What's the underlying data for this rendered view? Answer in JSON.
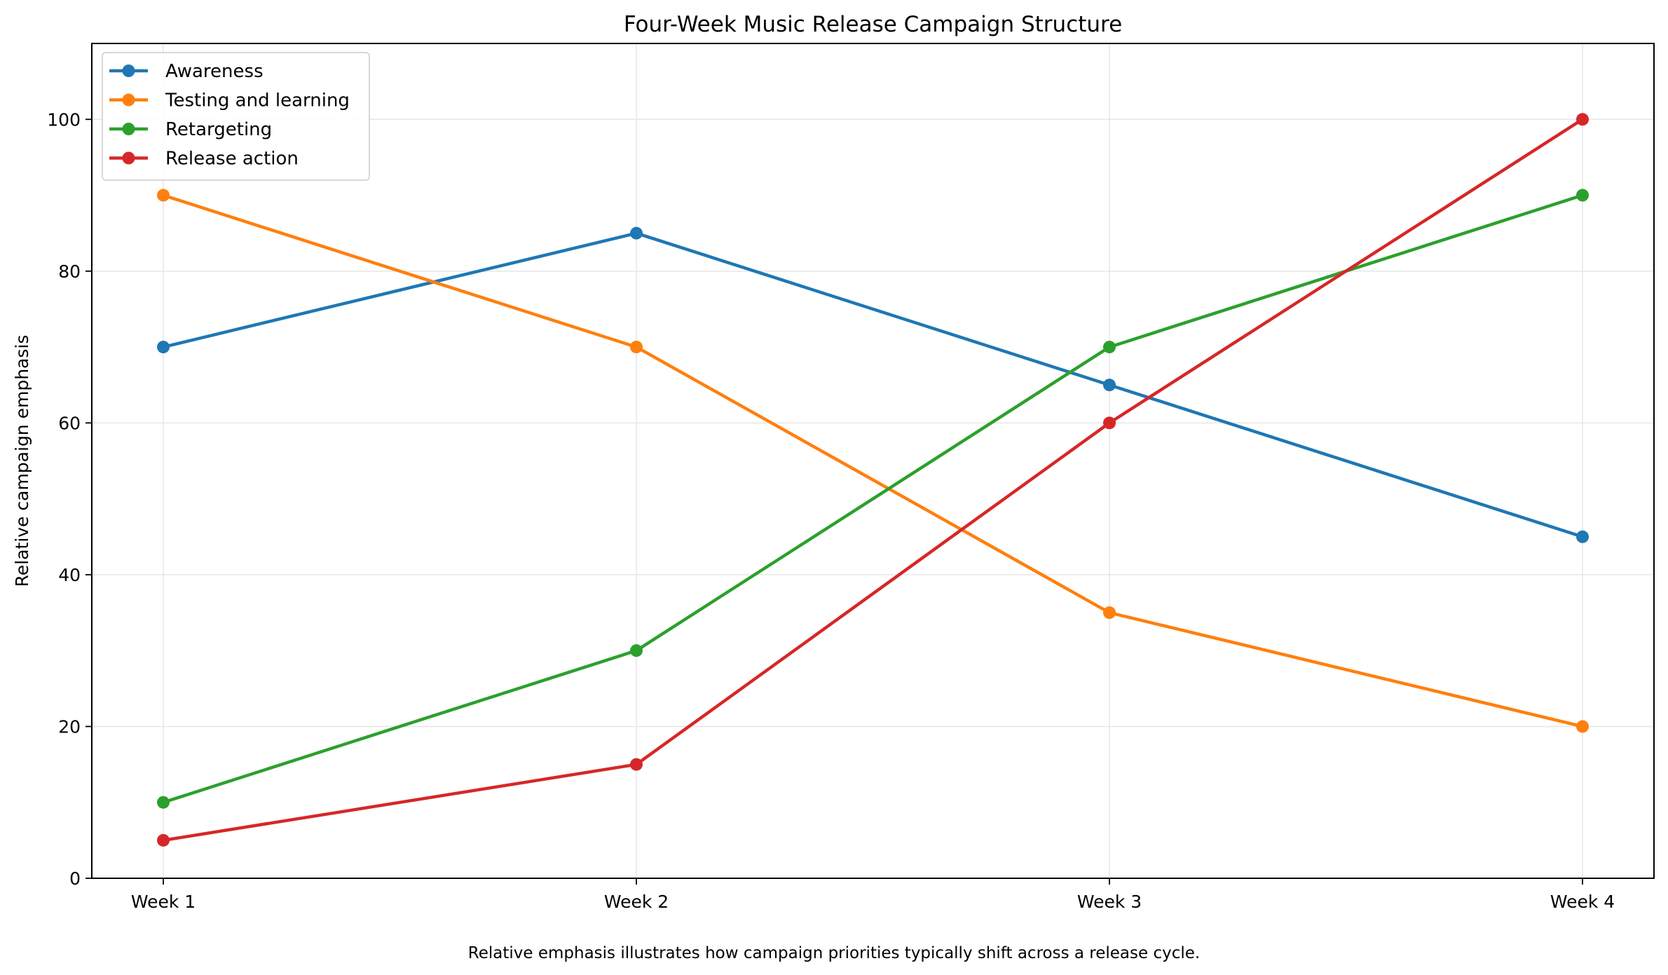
{
  "chart_data": {
    "type": "line",
    "title": "Four-Week Music Release Campaign Structure",
    "xlabel": "",
    "ylabel": "Relative campaign emphasis",
    "caption": "Relative emphasis illustrates how campaign priorities typically shift across a release cycle.",
    "categories": [
      "Week 1",
      "Week 2",
      "Week 3",
      "Week 4"
    ],
    "ylim": [
      0,
      110
    ],
    "yticks": [
      0,
      20,
      40,
      60,
      80,
      100
    ],
    "grid": true,
    "legend_position": "top-left",
    "series": [
      {
        "name": "Awareness",
        "color": "#1f77b4",
        "values": [
          70,
          85,
          65,
          45
        ]
      },
      {
        "name": "Testing and learning",
        "color": "#ff7f0e",
        "values": [
          90,
          70,
          35,
          20
        ]
      },
      {
        "name": "Retargeting",
        "color": "#2ca02c",
        "values": [
          10,
          30,
          70,
          90
        ]
      },
      {
        "name": "Release action",
        "color": "#d62728",
        "values": [
          5,
          15,
          60,
          100
        ]
      }
    ]
  }
}
